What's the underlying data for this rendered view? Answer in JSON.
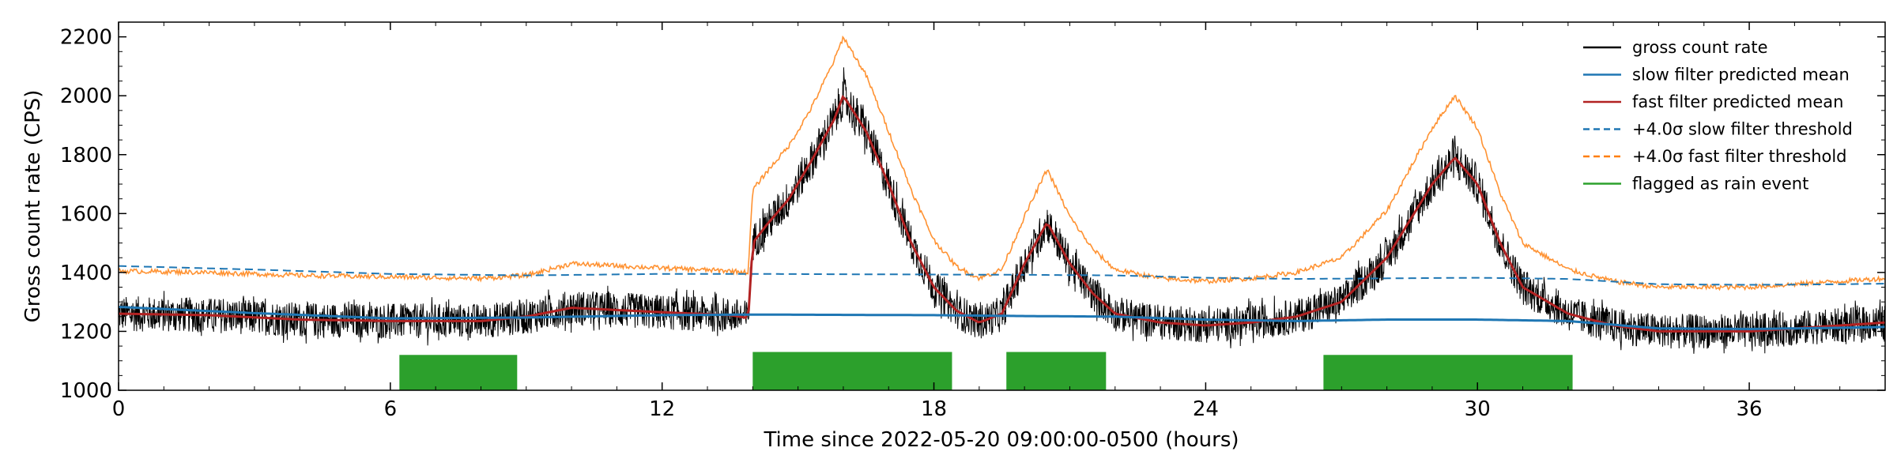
{
  "chart_data": {
    "type": "line",
    "xlabel": "Time since 2022-05-20 09:00:00-0500 (hours)",
    "ylabel": "Gross count rate (CPS)",
    "xlim": [
      0,
      39
    ],
    "ylim": [
      1000,
      2250
    ],
    "x_ticks": [
      0,
      6,
      12,
      18,
      24,
      30,
      36
    ],
    "x_tick_labels": [
      "0",
      "6",
      "12",
      "18",
      "24",
      "30",
      "36"
    ],
    "y_ticks": [
      1000,
      1200,
      1400,
      1600,
      1800,
      2000,
      2200
    ],
    "y_tick_labels": [
      "1000",
      "1200",
      "1400",
      "1600",
      "1800",
      "2000",
      "2200"
    ],
    "legend_position": "top-right",
    "colors": {
      "gross": "#000000",
      "slow_mean": "#1f77b4",
      "fast_mean": "#b22222",
      "slow_threshold": "#1f77b4",
      "fast_threshold": "#ff7f0e",
      "rain": "#2ca02c"
    },
    "series": [
      {
        "name": "gross count rate",
        "key": "gross",
        "style": "solid",
        "noise_band": 60,
        "x": [
          0,
          2,
          4,
          6,
          8,
          9,
          10,
          12,
          13.5,
          13.9,
          14.0,
          14.3,
          14.8,
          15.3,
          15.8,
          16.0,
          16.5,
          17,
          17.5,
          18,
          18.5,
          19,
          19.5,
          20,
          20.5,
          21,
          21.5,
          22,
          23,
          24,
          25,
          26,
          27,
          28,
          29,
          29.5,
          30,
          30.5,
          31,
          32,
          33,
          34,
          36,
          38,
          39
        ],
        "y": [
          1260,
          1255,
          1240,
          1235,
          1235,
          1250,
          1280,
          1265,
          1255,
          1245,
          1500,
          1560,
          1650,
          1780,
          1920,
          2000,
          1880,
          1700,
          1500,
          1350,
          1270,
          1230,
          1260,
          1430,
          1570,
          1430,
          1330,
          1260,
          1230,
          1220,
          1230,
          1250,
          1300,
          1450,
          1700,
          1790,
          1700,
          1500,
          1350,
          1260,
          1220,
          1200,
          1200,
          1220,
          1230
        ]
      },
      {
        "name": "slow filter predicted mean",
        "key": "slow_mean",
        "style": "solid",
        "x": [
          0,
          3,
          6,
          9,
          12,
          14,
          18,
          20,
          22,
          24,
          26,
          28,
          30,
          32,
          34,
          36,
          38,
          39
        ],
        "y": [
          1283,
          1262,
          1244,
          1247,
          1255,
          1257,
          1255,
          1252,
          1250,
          1240,
          1235,
          1240,
          1240,
          1235,
          1210,
          1208,
          1212,
          1215
        ]
      },
      {
        "name": "fast filter predicted mean",
        "key": "fast_mean",
        "style": "solid",
        "x": [
          0,
          2,
          4,
          6,
          8,
          9,
          10,
          12,
          13.5,
          13.9,
          14.0,
          14.3,
          14.8,
          15.3,
          15.8,
          16.0,
          16.5,
          17,
          17.5,
          18,
          18.5,
          19,
          19.5,
          20,
          20.5,
          21,
          21.5,
          22,
          23,
          24,
          25,
          26,
          27,
          28,
          29,
          29.5,
          30,
          30.5,
          31,
          32,
          33,
          34,
          36,
          38,
          39
        ],
        "y": [
          1260,
          1255,
          1240,
          1235,
          1235,
          1250,
          1280,
          1265,
          1255,
          1245,
          1500,
          1560,
          1650,
          1780,
          1920,
          2000,
          1880,
          1700,
          1500,
          1350,
          1270,
          1230,
          1260,
          1430,
          1570,
          1430,
          1330,
          1260,
          1230,
          1220,
          1230,
          1250,
          1300,
          1450,
          1700,
          1790,
          1700,
          1500,
          1350,
          1260,
          1220,
          1200,
          1200,
          1220,
          1230
        ]
      },
      {
        "name": "+4.0σ slow filter threshold",
        "key": "slow_threshold",
        "style": "dashed",
        "x": [
          0,
          3,
          6,
          9,
          12,
          14,
          18,
          20,
          22,
          24,
          26,
          28,
          30,
          32,
          34,
          36,
          38,
          39
        ],
        "y": [
          1422,
          1410,
          1395,
          1390,
          1395,
          1395,
          1393,
          1392,
          1390,
          1382,
          1378,
          1380,
          1382,
          1378,
          1360,
          1358,
          1360,
          1362
        ]
      },
      {
        "name": "+4.0σ fast filter threshold",
        "key": "fast_threshold",
        "style": "solid",
        "noise_band": 8,
        "x": [
          0,
          2,
          4,
          6,
          8,
          9,
          10,
          12,
          13.5,
          13.9,
          14.0,
          14.3,
          14.8,
          15.3,
          15.8,
          16.0,
          16.5,
          17,
          17.5,
          18,
          18.5,
          19,
          19.5,
          20,
          20.5,
          21,
          21.5,
          22,
          23,
          24,
          25,
          26,
          27,
          28,
          29,
          29.5,
          30,
          30.5,
          31,
          32,
          33,
          34,
          36,
          38,
          39
        ],
        "y": [
          1405,
          1400,
          1390,
          1385,
          1380,
          1390,
          1430,
          1415,
          1405,
          1400,
          1680,
          1740,
          1830,
          1960,
          2120,
          2200,
          2070,
          1880,
          1680,
          1510,
          1420,
          1380,
          1410,
          1590,
          1750,
          1590,
          1480,
          1410,
          1380,
          1370,
          1380,
          1400,
          1450,
          1610,
          1890,
          2000,
          1890,
          1670,
          1500,
          1410,
          1370,
          1350,
          1350,
          1370,
          1380
        ]
      },
      {
        "name": "flagged as rain event",
        "key": "rain",
        "style": "bars",
        "intervals": [
          {
            "start": 6.2,
            "end": 8.8,
            "top": 1120
          },
          {
            "start": 14.0,
            "end": 18.4,
            "top": 1130
          },
          {
            "start": 19.6,
            "end": 21.8,
            "top": 1130
          },
          {
            "start": 26.6,
            "end": 32.1,
            "top": 1120
          }
        ]
      }
    ]
  }
}
